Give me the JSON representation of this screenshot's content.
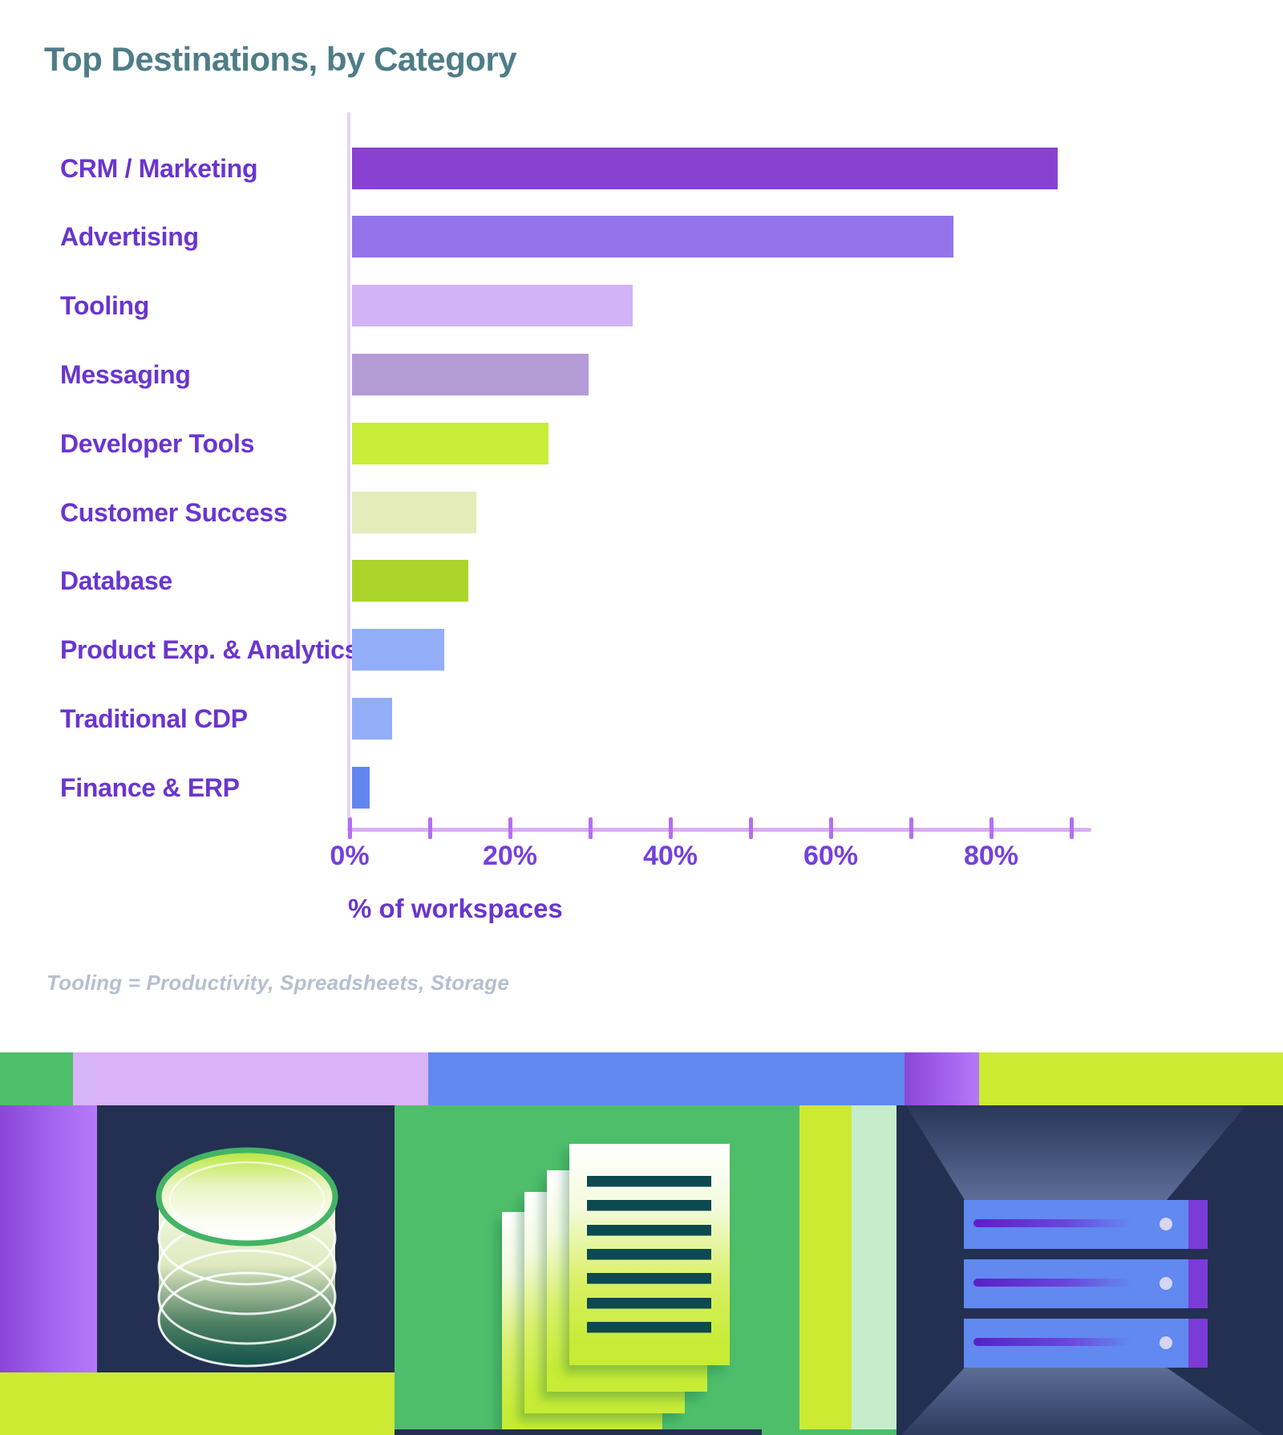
{
  "title": "Top Destinations, by Category",
  "footnote": "Tooling = Productivity, Spreadsheets, Storage",
  "chart_data": {
    "type": "bar",
    "orientation": "horizontal",
    "title": "Top Destinations, by Category",
    "xlabel": "% of workspaces",
    "xlim": [
      0,
      90
    ],
    "xtick_step": 10,
    "xtick_labels": [
      "0%",
      "20%",
      "40%",
      "60%",
      "80%"
    ],
    "xtick_label_values": [
      0,
      20,
      40,
      60,
      80
    ],
    "grid": false,
    "legend": false,
    "categories": [
      "CRM / Marketing",
      "Advertising",
      "Tooling",
      "Messaging",
      "Developer Tools",
      "Customer Success",
      "Database",
      "Product Exp. & Analytics",
      "Traditional CDP",
      "Finance & ERP"
    ],
    "values": [
      88,
      75,
      35,
      29.5,
      24.5,
      15.5,
      14.5,
      11.5,
      5,
      2.2
    ],
    "bar_colors": [
      "#8941d1",
      "#9374eb",
      "#d3b3f7",
      "#b49cd7",
      "#c8ee39",
      "#e4ecba",
      "#abd52b",
      "#92aef8",
      "#92aef8",
      "#6286ef"
    ]
  },
  "colors": {
    "title_teal": "#4e7d87",
    "label_purple": "#6a35cf",
    "tick_label": "#7540dd",
    "axis_line": "#d9aef6",
    "axis_ticks": "#b46ef2",
    "y_axis_line": "#e6d2fa",
    "footnote_gray": "#b6bfcf",
    "green": "#4ebe6a",
    "light_purple": "#d8b3f7",
    "blue": "#6189ef",
    "violet_a": "#8a46d8",
    "violet_b": "#b678fa",
    "lime": "#cdea33",
    "mint": "#c6edcb",
    "navy": "#233052",
    "dark_teal": "#0d4a51"
  },
  "banner": {
    "icons": [
      "database-cylinder",
      "document-stack",
      "server-rack"
    ]
  }
}
